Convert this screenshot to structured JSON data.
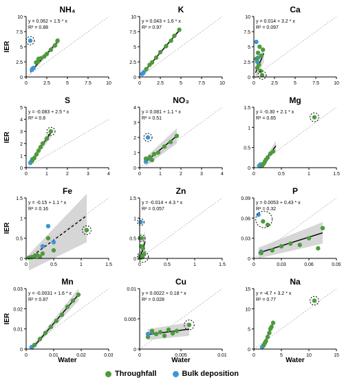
{
  "colors": {
    "throughfall": "#4d9b3c",
    "bulk": "#3b96d8",
    "diag": "#bcbcbc",
    "fit": "#000",
    "band": "#d6d6d6",
    "axis": "#000"
  },
  "legend": {
    "throughfall": "Throughfall",
    "bulk": "Bulk deposition"
  },
  "ylabel": "IER",
  "xlabel": "Water",
  "geom": {
    "w": 160,
    "h": 128,
    "ml": 34,
    "mr": 6,
    "mt": 18,
    "mb": 22
  },
  "panels": [
    {
      "title": "NH₄",
      "eq": "y = 0.062 + 1.5 * x",
      "r2": "R² = 0.88",
      "xlim": [
        0,
        10
      ],
      "ylim": [
        0,
        10
      ],
      "xticks": [
        0,
        2.5,
        5,
        7.5,
        10
      ],
      "yticks": [
        0,
        2.5,
        5,
        7.5,
        10
      ],
      "showY": true,
      "tf": [
        [
          1.2,
          2.4
        ],
        [
          1.4,
          2.5
        ],
        [
          1.5,
          3.0
        ],
        [
          1.8,
          3.1
        ],
        [
          2.2,
          3.4
        ],
        [
          2.5,
          3.8
        ],
        [
          3.0,
          4.5
        ],
        [
          3.5,
          5.2
        ],
        [
          3.8,
          6.0
        ]
      ],
      "bk": [
        [
          0.5,
          6.0
        ],
        [
          0.7,
          1.2
        ],
        [
          0.8,
          1.4
        ],
        [
          0.9,
          1.5
        ]
      ],
      "fit": [
        [
          0.5,
          0.8
        ],
        [
          4.0,
          6.1
        ]
      ],
      "band": [
        [
          0.5,
          0.5,
          1.1
        ],
        [
          4.0,
          5.6,
          6.6
        ]
      ],
      "circ": [
        [
          0.5,
          6.0,
          0.5
        ]
      ]
    },
    {
      "title": "K",
      "eq": "y = 0.043 + 1.6 * x",
      "r2": "R² = 0.97",
      "xlim": [
        0,
        10
      ],
      "ylim": [
        0,
        10
      ],
      "xticks": [
        0,
        2.5,
        5,
        7.5,
        10
      ],
      "yticks": [
        0,
        2.5,
        5,
        7.5,
        10
      ],
      "tf": [
        [
          0.8,
          1.3
        ],
        [
          1.2,
          2.0
        ],
        [
          1.5,
          2.4
        ],
        [
          2.0,
          3.2
        ],
        [
          2.5,
          4.1
        ],
        [
          3.2,
          5.1
        ],
        [
          3.8,
          6.0
        ],
        [
          4.2,
          6.8
        ],
        [
          4.8,
          7.8
        ]
      ],
      "bk": [
        [
          0.3,
          0.5
        ],
        [
          0.4,
          0.6
        ],
        [
          0.5,
          0.8
        ]
      ],
      "fit": [
        [
          0.3,
          0.5
        ],
        [
          4.8,
          7.7
        ]
      ],
      "band": [
        [
          0.3,
          0.3,
          0.7
        ],
        [
          4.8,
          7.4,
          8.0
        ]
      ]
    },
    {
      "title": "Ca",
      "eq": "y = 0.014 + 3.2 * x",
      "r2": "R² = 0.097",
      "xlim": [
        0,
        10
      ],
      "ylim": [
        0,
        10
      ],
      "xticks": [
        0,
        2.5,
        5,
        7.5,
        10
      ],
      "yticks": [
        0,
        2.5,
        5,
        7.5,
        10
      ],
      "tf": [
        [
          0.3,
          3.0
        ],
        [
          0.4,
          1.5
        ],
        [
          0.5,
          4.0
        ],
        [
          0.6,
          2.0
        ],
        [
          0.7,
          5.0
        ],
        [
          0.8,
          1.0
        ],
        [
          0.9,
          3.5
        ],
        [
          1.0,
          0.3
        ],
        [
          1.1,
          4.5
        ]
      ],
      "bk": [
        [
          0.3,
          5.8
        ],
        [
          0.4,
          2.5
        ],
        [
          0.5,
          3.2
        ]
      ],
      "fit": [
        [
          0.2,
          0.7
        ],
        [
          1.2,
          3.9
        ]
      ],
      "band": [
        [
          0.2,
          -0.5,
          1.8
        ],
        [
          1.2,
          2.5,
          5.2
        ]
      ],
      "circ": [
        [
          1.0,
          0.3,
          0.5
        ]
      ]
    },
    {
      "title": "S",
      "eq": "y = -0.083 + 2.5 * x",
      "r2": "R² = 0.8",
      "xlim": [
        0,
        4
      ],
      "ylim": [
        0,
        5
      ],
      "xticks": [
        0,
        1,
        2,
        3,
        4
      ],
      "yticks": [
        0,
        1,
        2,
        3,
        4,
        5
      ],
      "showY": true,
      "tf": [
        [
          0.3,
          0.6
        ],
        [
          0.4,
          0.8
        ],
        [
          0.5,
          1.1
        ],
        [
          0.6,
          1.4
        ],
        [
          0.7,
          1.7
        ],
        [
          0.8,
          2.0
        ],
        [
          1.0,
          2.4
        ],
        [
          1.2,
          3.0
        ]
      ],
      "bk": [
        [
          0.2,
          0.4
        ],
        [
          0.25,
          0.5
        ],
        [
          0.3,
          0.7
        ]
      ],
      "fit": [
        [
          0.2,
          0.4
        ],
        [
          1.2,
          2.9
        ]
      ],
      "band": [
        [
          0.2,
          0.2,
          0.6
        ],
        [
          1.2,
          2.5,
          3.3
        ]
      ],
      "circ": [
        [
          1.2,
          3.0,
          0.2
        ]
      ]
    },
    {
      "title": "NO₃",
      "eq": "y = 0.081 + 1.1 * x",
      "r2": "R² = 0.51",
      "xlim": [
        0,
        4
      ],
      "ylim": [
        0,
        4
      ],
      "xticks": [
        0,
        1,
        2,
        3,
        4
      ],
      "yticks": [
        0,
        1,
        2,
        3,
        4
      ],
      "tf": [
        [
          0.3,
          0.6
        ],
        [
          0.5,
          0.7
        ],
        [
          0.6,
          0.5
        ],
        [
          0.7,
          0.9
        ],
        [
          0.9,
          1.0
        ],
        [
          1.2,
          1.4
        ],
        [
          1.5,
          1.7
        ],
        [
          1.8,
          2.1
        ]
      ],
      "bk": [
        [
          0.3,
          0.4
        ],
        [
          0.4,
          2.0
        ],
        [
          0.5,
          0.6
        ]
      ],
      "fit": [
        [
          0.3,
          0.4
        ],
        [
          1.8,
          2.1
        ]
      ],
      "band": [
        [
          0.3,
          0.1,
          0.7
        ],
        [
          1.8,
          1.6,
          2.6
        ]
      ],
      "circ": [
        [
          0.4,
          2.0,
          0.2
        ]
      ]
    },
    {
      "title": "Mg",
      "eq": "y = -0.30 + 2.1 * x",
      "r2": "R² = 0.65",
      "xlim": [
        0,
        1.5
      ],
      "ylim": [
        0,
        1.5
      ],
      "xticks": [
        0,
        0.5,
        1,
        1.5
      ],
      "yticks": [
        0,
        0.5,
        1,
        1.5
      ],
      "tf": [
        [
          0.15,
          0.05
        ],
        [
          0.18,
          0.1
        ],
        [
          0.2,
          0.15
        ],
        [
          0.22,
          0.2
        ],
        [
          0.25,
          0.25
        ],
        [
          0.3,
          0.35
        ],
        [
          0.35,
          0.4
        ]
      ],
      "bk": [
        [
          0.1,
          0.05
        ],
        [
          0.12,
          0.08
        ]
      ],
      "fit": [
        [
          0.1,
          0
        ],
        [
          0.4,
          0.54
        ]
      ],
      "band": [
        [
          0.1,
          -0.05,
          0.02
        ],
        [
          0.4,
          0.42,
          0.66
        ]
      ],
      "circ": [
        [
          1.1,
          1.25,
          0.08
        ]
      ],
      "outlier_tf": [
        [
          1.1,
          1.25
        ]
      ]
    },
    {
      "title": "Fe",
      "eq": "y = -0.15 + 1.1 * x",
      "r2": "R² = 0.16",
      "xlim": [
        0,
        1.5
      ],
      "ylim": [
        0,
        1.5
      ],
      "xticks": [
        0,
        0.5,
        1,
        1.5
      ],
      "yticks": [
        0,
        0.5,
        1,
        1.5
      ],
      "showY": true,
      "tf": [
        [
          0.05,
          0.02
        ],
        [
          0.1,
          0.03
        ],
        [
          0.15,
          0.05
        ],
        [
          0.2,
          0.08
        ],
        [
          0.25,
          0.04
        ],
        [
          0.3,
          0.12
        ],
        [
          0.4,
          0.5
        ],
        [
          0.5,
          0.2
        ]
      ],
      "bk": [
        [
          0.3,
          0.3
        ],
        [
          0.4,
          0.8
        ],
        [
          0.5,
          0.4
        ]
      ],
      "fit": [
        [
          0.05,
          0
        ],
        [
          1.1,
          1.06
        ]
      ],
      "band": [
        [
          0.05,
          -0.3,
          0.1
        ],
        [
          1.1,
          0.4,
          1.6
        ]
      ],
      "dashfit": true,
      "outlier_tf": [
        [
          1.1,
          0.7
        ]
      ],
      "circ": [
        [
          1.1,
          0.7,
          0.08
        ]
      ]
    },
    {
      "title": "Zn",
      "eq": "y = -0.014 + 4.3 * x",
      "r2": "R² = 0.057",
      "xlim": [
        0,
        1.5
      ],
      "ylim": [
        0,
        1.5
      ],
      "xticks": [
        0,
        0.5,
        1,
        1.5
      ],
      "yticks": [
        0,
        0.5,
        1,
        1.5
      ],
      "tf": [
        [
          0.01,
          0.05
        ],
        [
          0.02,
          0.02
        ],
        [
          0.03,
          0.3
        ],
        [
          0.04,
          0.5
        ],
        [
          0.05,
          0.03
        ],
        [
          0.06,
          0.25
        ],
        [
          0.08,
          0.1
        ]
      ],
      "bk": [
        [
          0.02,
          0.9
        ],
        [
          0.03,
          0.04
        ]
      ],
      "fit": [
        [
          0.01,
          0.03
        ],
        [
          0.1,
          0.42
        ]
      ],
      "band": [
        [
          0.01,
          -0.1,
          0.15
        ],
        [
          0.1,
          0.15,
          0.7
        ]
      ],
      "circ": [
        [
          0.02,
          0.9,
          0.06
        ],
        [
          0.04,
          0.5,
          0.06
        ],
        [
          0.06,
          0.04,
          0.1
        ]
      ]
    },
    {
      "title": "P",
      "eq": "y = 0.0053 + 0.43 * x",
      "r2": "R² = 0.32",
      "xlim": [
        0,
        0.09
      ],
      "ylim": [
        0,
        0.09
      ],
      "xticks": [
        0,
        0.03,
        0.06,
        0.09
      ],
      "yticks": [
        0,
        0.03,
        0.06,
        0.09
      ],
      "tf": [
        [
          0.008,
          0.008
        ],
        [
          0.01,
          0.055
        ],
        [
          0.015,
          0.05
        ],
        [
          0.02,
          0.012
        ],
        [
          0.03,
          0.018
        ],
        [
          0.04,
          0.022
        ],
        [
          0.05,
          0.02
        ],
        [
          0.06,
          0.03
        ],
        [
          0.07,
          0.015
        ],
        [
          0.075,
          0.045
        ]
      ],
      "bk": [
        [
          0.005,
          0.065
        ],
        [
          0.008,
          0.01
        ]
      ],
      "fit": [
        [
          0.005,
          0.008
        ],
        [
          0.075,
          0.038
        ]
      ],
      "band": [
        [
          0.005,
          0,
          0.016
        ],
        [
          0.075,
          0.022,
          0.054
        ]
      ],
      "circ": [
        [
          0.011,
          0.058,
          0.009
        ]
      ]
    },
    {
      "title": "Mn",
      "eq": "y = -0.0031 + 1.6 * x",
      "r2": "R² = 0.87",
      "xlim": [
        0,
        0.03
      ],
      "ylim": [
        0,
        0.03
      ],
      "xticks": [
        0,
        0.01,
        0.02,
        0.03
      ],
      "yticks": [
        0,
        0.01,
        0.02,
        0.03
      ],
      "showY": true,
      "showX": true,
      "tf": [
        [
          0.003,
          0.002
        ],
        [
          0.005,
          0.005
        ],
        [
          0.007,
          0.008
        ],
        [
          0.009,
          0.011
        ],
        [
          0.011,
          0.014
        ],
        [
          0.013,
          0.017
        ],
        [
          0.015,
          0.021
        ],
        [
          0.017,
          0.024
        ],
        [
          0.019,
          0.027
        ]
      ],
      "bk": [
        [
          0.002,
          0.001
        ],
        [
          0.003,
          0.002
        ]
      ],
      "fit": [
        [
          0.002,
          0
        ],
        [
          0.019,
          0.027
        ]
      ],
      "band": [
        [
          0.002,
          -0.001,
          0.001
        ],
        [
          0.019,
          0.024,
          0.03
        ]
      ]
    },
    {
      "title": "Cu",
      "eq": "y = 0.0022 + 0.18 * x",
      "r2": "R² = 0.028",
      "xlim": [
        0,
        0.01
      ],
      "ylim": [
        0,
        0.01
      ],
      "xticks": [
        0,
        0.005,
        0.01
      ],
      "yticks": [
        0,
        0.005,
        0.01
      ],
      "showX": true,
      "tf": [
        [
          0.001,
          0.002
        ],
        [
          0.0015,
          0.003
        ],
        [
          0.002,
          0.0025
        ],
        [
          0.0025,
          0.0028
        ],
        [
          0.003,
          0.0022
        ],
        [
          0.0035,
          0.0032
        ],
        [
          0.004,
          0.0026
        ],
        [
          0.0045,
          0.003
        ]
      ],
      "bk": [
        [
          0.001,
          0.0025
        ],
        [
          0.0015,
          0.0028
        ]
      ],
      "fit": [
        [
          0.001,
          0.0024
        ],
        [
          0.006,
          0.0033
        ]
      ],
      "band": [
        [
          0.001,
          0.0015,
          0.0033
        ],
        [
          0.006,
          0.0022,
          0.0044
        ]
      ],
      "outlier_tf": [
        [
          0.006,
          0.004
        ]
      ],
      "circ": [
        [
          0.006,
          0.004,
          0.0006
        ]
      ]
    },
    {
      "title": "Na",
      "eq": "y = -4.7 + 3.2 * x",
      "r2": "R² = 0.77",
      "xlim": [
        0,
        15
      ],
      "ylim": [
        0,
        15
      ],
      "xticks": [
        0,
        5,
        10,
        15
      ],
      "yticks": [
        0,
        5,
        10,
        15
      ],
      "showX": true,
      "tf": [
        [
          1.8,
          1.0
        ],
        [
          2.0,
          1.5
        ],
        [
          2.2,
          2.0
        ],
        [
          2.5,
          3.0
        ],
        [
          2.8,
          4.0
        ],
        [
          3.0,
          5.0
        ],
        [
          3.2,
          5.5
        ],
        [
          3.5,
          6.5
        ]
      ],
      "bk": [
        [
          1.5,
          0.5
        ],
        [
          1.7,
          0.8
        ]
      ],
      "fit": [
        [
          1.5,
          0.1
        ],
        [
          3.5,
          6.5
        ]
      ],
      "band": [
        [
          1.5,
          -0.5,
          0.7
        ],
        [
          3.5,
          5.5,
          7.5
        ]
      ],
      "outlier_tf": [
        [
          11,
          12
        ]
      ],
      "circ": [
        [
          11,
          12,
          0.8
        ]
      ]
    }
  ]
}
